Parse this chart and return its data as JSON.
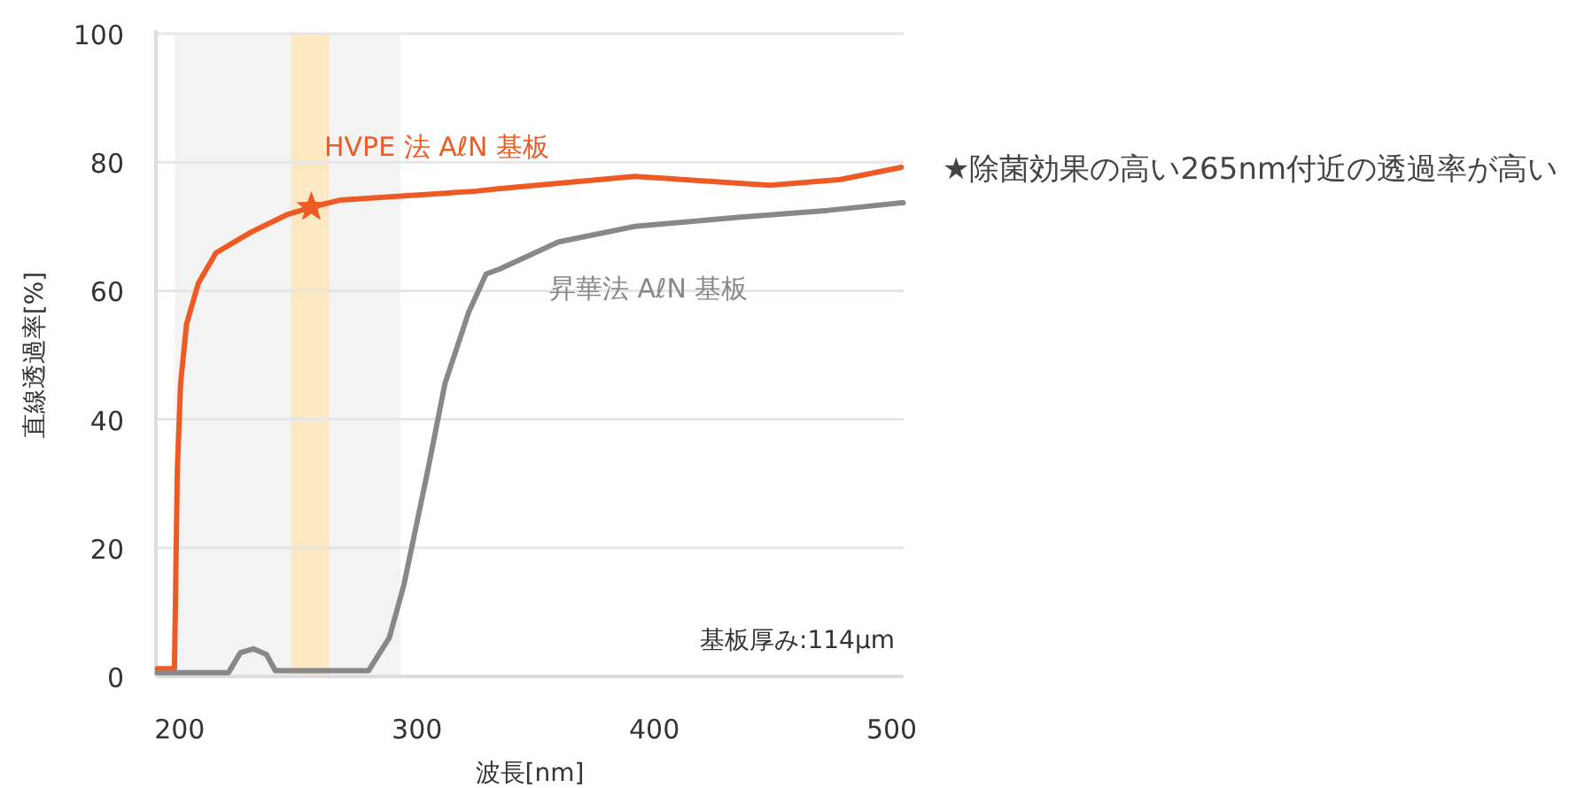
{
  "chart_data": {
    "type": "line",
    "xlabel": "波長[nm]",
    "ylabel": "直線透過率[%]",
    "xlim": [
      190,
      505
    ],
    "ylim": [
      0,
      100
    ],
    "xticks": [
      200,
      300,
      400,
      500
    ],
    "yticks": [
      0,
      20,
      40,
      60,
      80,
      100
    ],
    "grid": "y",
    "bands": [
      {
        "axis": "x",
        "from": 198,
        "to": 293,
        "color": "#f3f3f3"
      },
      {
        "axis": "x",
        "from": 247,
        "to": 263,
        "color": "#fde8c4"
      }
    ],
    "series": [
      {
        "name": "HVPE 法 AℓN 基板",
        "color": "#ee5a24",
        "x": [
          190.6,
          197.8,
          198.3,
          199,
          200.4,
          202.9,
          207.9,
          215.3,
          230,
          245,
          255.5,
          267.4,
          324.9,
          335,
          391.6,
          448.7,
          478.4,
          504
        ],
        "values": [
          1.2,
          1.2,
          13.4,
          31.8,
          45.6,
          54.8,
          61.2,
          65.9,
          69.1,
          71.8,
          73,
          74.1,
          75.5,
          75.9,
          77.8,
          76.4,
          77.3,
          79.2
        ]
      },
      {
        "name": "昇華法 AℓN 基板",
        "color": "#888888",
        "x": [
          190.6,
          220.6,
          225.6,
          231,
          236.6,
          240.3,
          279.6,
          288.3,
          294.5,
          304.4,
          311.8,
          321.7,
          329.1,
          334.9,
          359.6,
          391.6,
          433.9,
          473,
          504.8
        ],
        "values": [
          0.6,
          0.6,
          3.7,
          4.3,
          3.4,
          0.9,
          0.9,
          6,
          14.3,
          31.8,
          45.6,
          56.6,
          62.6,
          63.4,
          67.6,
          70,
          71.4,
          72.5,
          73.7
        ]
      },
      {
        "type": "scatter",
        "marker": "star",
        "color": "#ee5a24",
        "x": [
          255.5
        ],
        "values": [
          73
        ]
      }
    ],
    "annotations": [
      "基板厚み:114µm",
      "★除菌効果の高い265nm付近の透過率が高い"
    ]
  }
}
